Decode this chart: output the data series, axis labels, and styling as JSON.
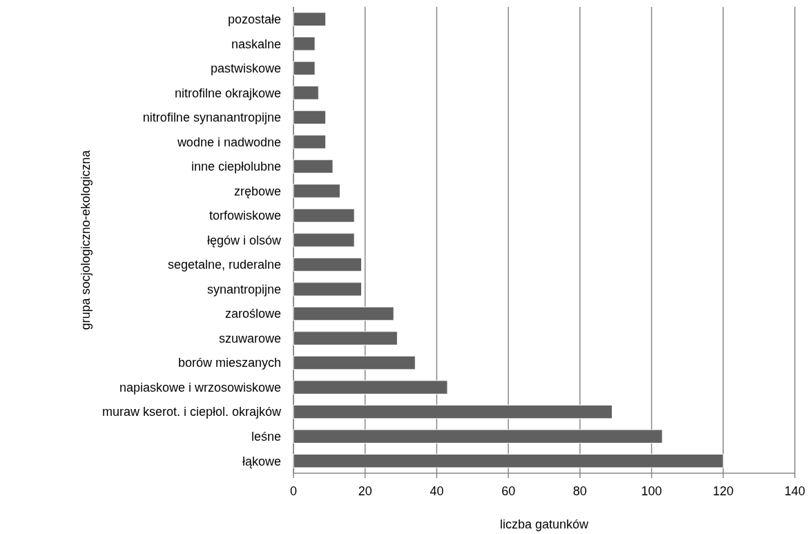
{
  "chart_data": {
    "type": "bar",
    "orientation": "horizontal",
    "xlabel": "liczba gatunków",
    "ylabel": "grupa socjologiczno-ekologiczna",
    "categories": [
      "pozostałe",
      "naskalne",
      "pastwiskowe",
      "nitrofilne okrajkowe",
      "nitrofilne synanantropijne",
      "wodne i nadwodne",
      "inne ciepłolubne",
      "zrębowe",
      "torfowiskowe",
      "łęgów i olsów",
      "segetalne, ruderalne",
      "synantropijne",
      "zaroślowe",
      "szuwarowe",
      "borów mieszanych",
      "napiaskowe i wrzosowiskowe",
      "muraw kserot. i ciepłol.  okrajków",
      "leśne",
      "łąkowe"
    ],
    "values": [
      9,
      6,
      6,
      7,
      9,
      9,
      11,
      13,
      17,
      17,
      19,
      19,
      28,
      29,
      34,
      43,
      89,
      103,
      120
    ],
    "color": "#606060",
    "xlim": [
      0,
      140
    ],
    "xticks": [
      0,
      20,
      40,
      60,
      80,
      100,
      120,
      140
    ],
    "grid": "x"
  }
}
